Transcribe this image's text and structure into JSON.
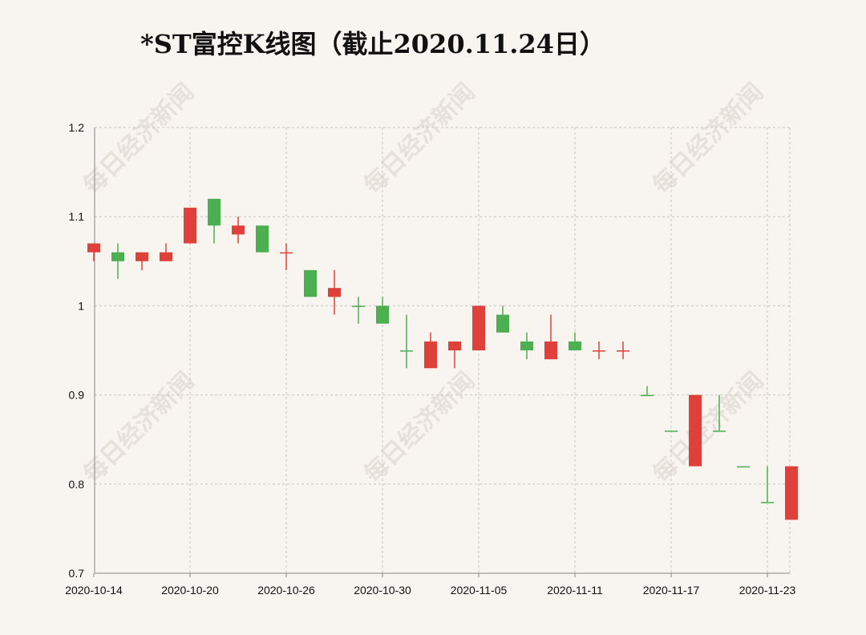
{
  "title": "*ST富控K线图（截止2020.11.24日）",
  "watermark": "每日经济新闻",
  "colors": {
    "up": "#e0403a",
    "down": "#4caf50",
    "grid": "#c9c4be",
    "axis": "#888888"
  },
  "chart_data": {
    "type": "candlestick",
    "title": "*ST富控K线图（截止2020.11.24日）",
    "ylim": [
      0.7,
      1.2
    ],
    "yticks": [
      0.7,
      0.8,
      0.9,
      1,
      1.1,
      1.2
    ],
    "ytick_labels": [
      "0.7",
      "0.8",
      "0.9",
      "1",
      "1.1",
      "1.2"
    ],
    "xtick_labels": [
      "2020-10-14",
      "2020-10-20",
      "2020-10-26",
      "2020-10-30",
      "2020-11-05",
      "2020-11-11",
      "2020-11-17",
      "2020-11-23"
    ],
    "xtick_indices": [
      0,
      4,
      8,
      12,
      16,
      20,
      24,
      28
    ],
    "grid": true,
    "candles": [
      {
        "o": 1.06,
        "c": 1.07,
        "h": 1.07,
        "l": 1.05
      },
      {
        "o": 1.06,
        "c": 1.05,
        "h": 1.07,
        "l": 1.03
      },
      {
        "o": 1.05,
        "c": 1.06,
        "h": 1.06,
        "l": 1.04
      },
      {
        "o": 1.05,
        "c": 1.06,
        "h": 1.07,
        "l": 1.05
      },
      {
        "o": 1.07,
        "c": 1.11,
        "h": 1.11,
        "l": 1.07
      },
      {
        "o": 1.12,
        "c": 1.09,
        "h": 1.12,
        "l": 1.07
      },
      {
        "o": 1.08,
        "c": 1.09,
        "h": 1.1,
        "l": 1.07
      },
      {
        "o": 1.09,
        "c": 1.06,
        "h": 1.09,
        "l": 1.06
      },
      {
        "o": 1.06,
        "c": 1.06,
        "h": 1.07,
        "l": 1.04
      },
      {
        "o": 1.04,
        "c": 1.01,
        "h": 1.04,
        "l": 1.01
      },
      {
        "o": 1.01,
        "c": 1.02,
        "h": 1.04,
        "l": 0.99
      },
      {
        "o": 1.0,
        "c": 1.0,
        "h": 1.01,
        "l": 0.98
      },
      {
        "o": 1.0,
        "c": 0.98,
        "h": 1.01,
        "l": 0.98
      },
      {
        "o": 0.95,
        "c": 0.95,
        "h": 0.99,
        "l": 0.93
      },
      {
        "o": 0.93,
        "c": 0.96,
        "h": 0.97,
        "l": 0.93
      },
      {
        "o": 0.95,
        "c": 0.96,
        "h": 0.96,
        "l": 0.93
      },
      {
        "o": 0.95,
        "c": 1.0,
        "h": 1.0,
        "l": 0.95
      },
      {
        "o": 0.99,
        "c": 0.97,
        "h": 1.0,
        "l": 0.97
      },
      {
        "o": 0.96,
        "c": 0.95,
        "h": 0.97,
        "l": 0.94
      },
      {
        "o": 0.94,
        "c": 0.96,
        "h": 0.99,
        "l": 0.94
      },
      {
        "o": 0.96,
        "c": 0.95,
        "h": 0.97,
        "l": 0.95
      },
      {
        "o": 0.95,
        "c": 0.95,
        "h": 0.96,
        "l": 0.94
      },
      {
        "o": 0.95,
        "c": 0.95,
        "h": 0.96,
        "l": 0.94
      },
      {
        "o": 0.9,
        "c": 0.9,
        "h": 0.91,
        "l": 0.9
      },
      {
        "o": 0.86,
        "c": 0.86,
        "h": 0.86,
        "l": 0.86
      },
      {
        "o": 0.82,
        "c": 0.9,
        "h": 0.9,
        "l": 0.82
      },
      {
        "o": 0.86,
        "c": 0.86,
        "h": 0.9,
        "l": 0.86
      },
      {
        "o": 0.82,
        "c": 0.82,
        "h": 0.82,
        "l": 0.82
      },
      {
        "o": 0.78,
        "c": 0.78,
        "h": 0.82,
        "l": 0.78
      },
      {
        "o": 0.76,
        "c": 0.82,
        "h": 0.82,
        "l": 0.76
      }
    ],
    "colors_by_candle": [
      "up",
      "down",
      "up",
      "up",
      "up",
      "down",
      "up",
      "down",
      "up",
      "down",
      "up",
      "down",
      "down",
      "down",
      "up",
      "up",
      "up",
      "down",
      "down",
      "up",
      "down",
      "up",
      "up",
      "down",
      "down",
      "up",
      "down",
      "down",
      "down",
      "up"
    ]
  }
}
